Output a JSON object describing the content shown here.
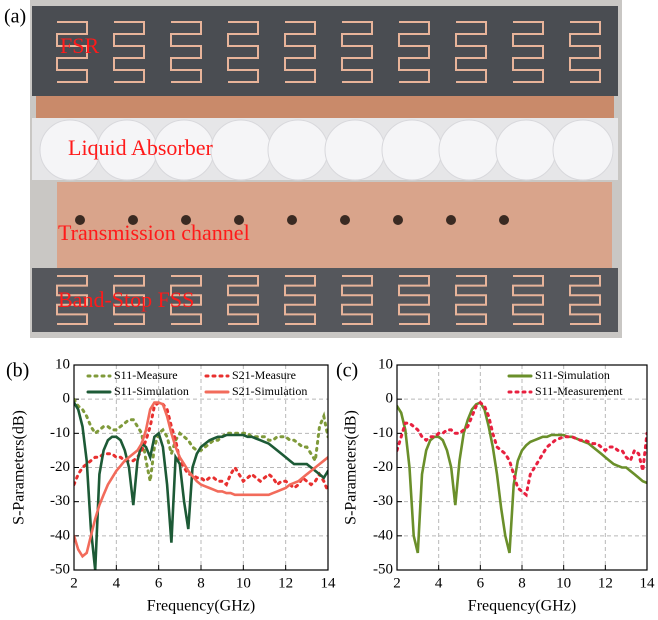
{
  "panels": {
    "a": "(a)",
    "b": "(b)",
    "c": "(c)"
  },
  "photo": {
    "labels": [
      "FSR",
      "Liquid Absorber",
      "Transmission channel",
      "Band-Stop FSS"
    ]
  },
  "chart_data": [
    {
      "type": "line",
      "xlabel": "Frequency(GHz)",
      "ylabel": "S-Parameters(dB)",
      "xlim": [
        2,
        14
      ],
      "xticks": [
        2,
        4,
        6,
        8,
        10,
        12,
        14
      ],
      "ylim": [
        -50,
        10
      ],
      "yticks": [
        -50,
        -40,
        -30,
        -20,
        -10,
        0,
        10
      ],
      "grid": true,
      "legend": "top",
      "x": [
        2.0,
        2.2,
        2.4,
        2.6,
        2.8,
        3.0,
        3.2,
        3.4,
        3.6,
        3.8,
        4.0,
        4.2,
        4.4,
        4.6,
        4.8,
        5.0,
        5.2,
        5.4,
        5.6,
        5.8,
        6.0,
        6.2,
        6.4,
        6.6,
        6.8,
        7.0,
        7.2,
        7.4,
        7.6,
        7.8,
        8.0,
        8.2,
        8.4,
        8.6,
        8.8,
        9.0,
        9.2,
        9.4,
        9.6,
        9.8,
        10.0,
        10.2,
        10.4,
        10.6,
        10.8,
        11.0,
        11.2,
        11.4,
        11.6,
        11.8,
        12.0,
        12.2,
        12.4,
        12.6,
        12.8,
        13.0,
        13.2,
        13.4,
        13.6,
        13.8,
        14.0
      ],
      "series": [
        {
          "name": "S11-Measure",
          "color": "#7f9a3a",
          "dash": "dotted",
          "values": [
            0,
            -2,
            -3,
            -5,
            -8,
            -10,
            -9,
            -8,
            -8,
            -9,
            -9,
            -8,
            -7,
            -6,
            -6,
            -8,
            -10,
            -18,
            -24,
            -14,
            -10,
            -9,
            -11,
            -16,
            -12,
            -10,
            -11,
            -12,
            -14,
            -15,
            -15,
            -14,
            -13,
            -12,
            -12,
            -11,
            -10,
            -10,
            -10,
            -10,
            -10,
            -10,
            -11,
            -11,
            -11,
            -11,
            -12,
            -12,
            -11,
            -11,
            -11,
            -12,
            -12,
            -13,
            -14,
            -14,
            -16,
            -18,
            -8,
            -5,
            -11
          ]
        },
        {
          "name": "S21-Measure",
          "color": "#e8302f",
          "dash": "dotted",
          "values": [
            -25,
            -22,
            -20,
            -19,
            -18,
            -17,
            -17,
            -16,
            -16,
            -16,
            -17,
            -17,
            -18,
            -18,
            -18,
            -17,
            -15,
            -12,
            -8,
            -2,
            -1,
            -1.5,
            -3,
            -8,
            -12,
            -18,
            -20,
            -22,
            -22,
            -23,
            -23,
            -24,
            -23,
            -23,
            -24,
            -24,
            -25,
            -22,
            -20,
            -22,
            -24,
            -23,
            -22,
            -23,
            -24,
            -23,
            -22,
            -23,
            -25,
            -24,
            -24,
            -25,
            -26,
            -25,
            -23,
            -24,
            -25,
            -24,
            -22,
            -24,
            -27
          ]
        },
        {
          "name": "S11-Simulation",
          "color": "#1d5a36",
          "dash": "solid",
          "values": [
            -1,
            -3,
            -8,
            -18,
            -38,
            -50,
            -22,
            -15,
            -12,
            -11,
            -11,
            -12,
            -15,
            -20,
            -31,
            -18,
            -13,
            -14,
            -17,
            -11,
            -10,
            -14,
            -25,
            -42,
            -17,
            -19,
            -30,
            -38,
            -20,
            -16,
            -14,
            -13,
            -12,
            -11.5,
            -11,
            -11,
            -10.5,
            -10.5,
            -10.5,
            -10.5,
            -10.5,
            -11,
            -11,
            -11.5,
            -12,
            -12.5,
            -13,
            -14,
            -15,
            -16,
            -17,
            -18,
            -19,
            -19,
            -19,
            -19,
            -20,
            -21,
            -22,
            -23,
            -21
          ]
        },
        {
          "name": "S21-Simulation",
          "color": "#f26b5b",
          "dash": "solid",
          "values": [
            -40,
            -44,
            -46,
            -45,
            -40,
            -35,
            -31,
            -28,
            -25,
            -23,
            -21,
            -19.5,
            -18,
            -17,
            -16,
            -15,
            -13,
            -9,
            -3,
            -1,
            -1,
            -1.5,
            -5,
            -10,
            -14,
            -17,
            -19,
            -21,
            -22.5,
            -24,
            -25,
            -25.5,
            -26,
            -26.5,
            -27,
            -27,
            -27.5,
            -27.5,
            -28,
            -28,
            -28,
            -28,
            -28,
            -28,
            -28,
            -28,
            -28,
            -27.5,
            -27,
            -26.5,
            -26,
            -25,
            -24.5,
            -24,
            -23,
            -22,
            -21,
            -20,
            -19,
            -18,
            -17
          ]
        }
      ]
    },
    {
      "type": "line",
      "xlabel": "Frequency(GHz)",
      "ylabel": "S-Parameters(dB)",
      "xlim": [
        2,
        14
      ],
      "xticks": [
        2,
        4,
        6,
        8,
        10,
        12,
        14
      ],
      "ylim": [
        -50,
        10
      ],
      "yticks": [
        -50,
        -40,
        -30,
        -20,
        -10,
        0,
        10
      ],
      "grid": true,
      "legend": "top-right",
      "x": [
        2.0,
        2.2,
        2.4,
        2.6,
        2.8,
        3.0,
        3.2,
        3.4,
        3.6,
        3.8,
        4.0,
        4.2,
        4.4,
        4.6,
        4.8,
        5.0,
        5.2,
        5.4,
        5.6,
        5.8,
        6.0,
        6.2,
        6.4,
        6.6,
        6.8,
        7.0,
        7.2,
        7.4,
        7.6,
        7.8,
        8.0,
        8.2,
        8.4,
        8.6,
        8.8,
        9.0,
        9.2,
        9.4,
        9.6,
        9.8,
        10.0,
        10.2,
        10.4,
        10.6,
        10.8,
        11.0,
        11.2,
        11.4,
        11.6,
        11.8,
        12.0,
        12.2,
        12.4,
        12.6,
        12.8,
        13.0,
        13.2,
        13.4,
        13.6,
        13.8,
        14.0
      ],
      "series": [
        {
          "name": "S11-Simulation",
          "color": "#6a8f2a",
          "dash": "solid",
          "values": [
            -2,
            -4,
            -9,
            -20,
            -40,
            -45,
            -22,
            -15,
            -12,
            -11,
            -11,
            -12,
            -15,
            -20,
            -31,
            -18,
            -10,
            -6,
            -3,
            -1.5,
            -1,
            -3,
            -8,
            -14,
            -22,
            -32,
            -40,
            -45,
            -25,
            -18,
            -15,
            -13.5,
            -12.5,
            -12,
            -11.5,
            -11,
            -11,
            -10.5,
            -10.5,
            -10.5,
            -10.5,
            -11,
            -11,
            -11.5,
            -12,
            -12.5,
            -13,
            -14,
            -15,
            -16,
            -17,
            -18,
            -19,
            -19.5,
            -20,
            -20,
            -21,
            -22,
            -23,
            -24,
            -24.5
          ]
        },
        {
          "name": "S11-Measurement",
          "color": "#e8203f",
          "dash": "dotted",
          "values": [
            -15,
            -11,
            -7,
            -7,
            -8,
            -9,
            -11,
            -12,
            -11,
            -11,
            -10,
            -10,
            -9,
            -9,
            -10,
            -10,
            -9,
            -8,
            -5,
            -2,
            -1,
            -2,
            -5,
            -10,
            -14,
            -15,
            -16,
            -18,
            -22,
            -26,
            -27,
            -28,
            -22,
            -20,
            -18,
            -16,
            -14,
            -13,
            -12,
            -11.5,
            -11,
            -11,
            -11,
            -11.5,
            -12,
            -12,
            -12.5,
            -13,
            -13,
            -14,
            -15,
            -14,
            -14,
            -15,
            -15,
            -17,
            -18,
            -15,
            -16,
            -21,
            -10
          ]
        }
      ]
    }
  ]
}
